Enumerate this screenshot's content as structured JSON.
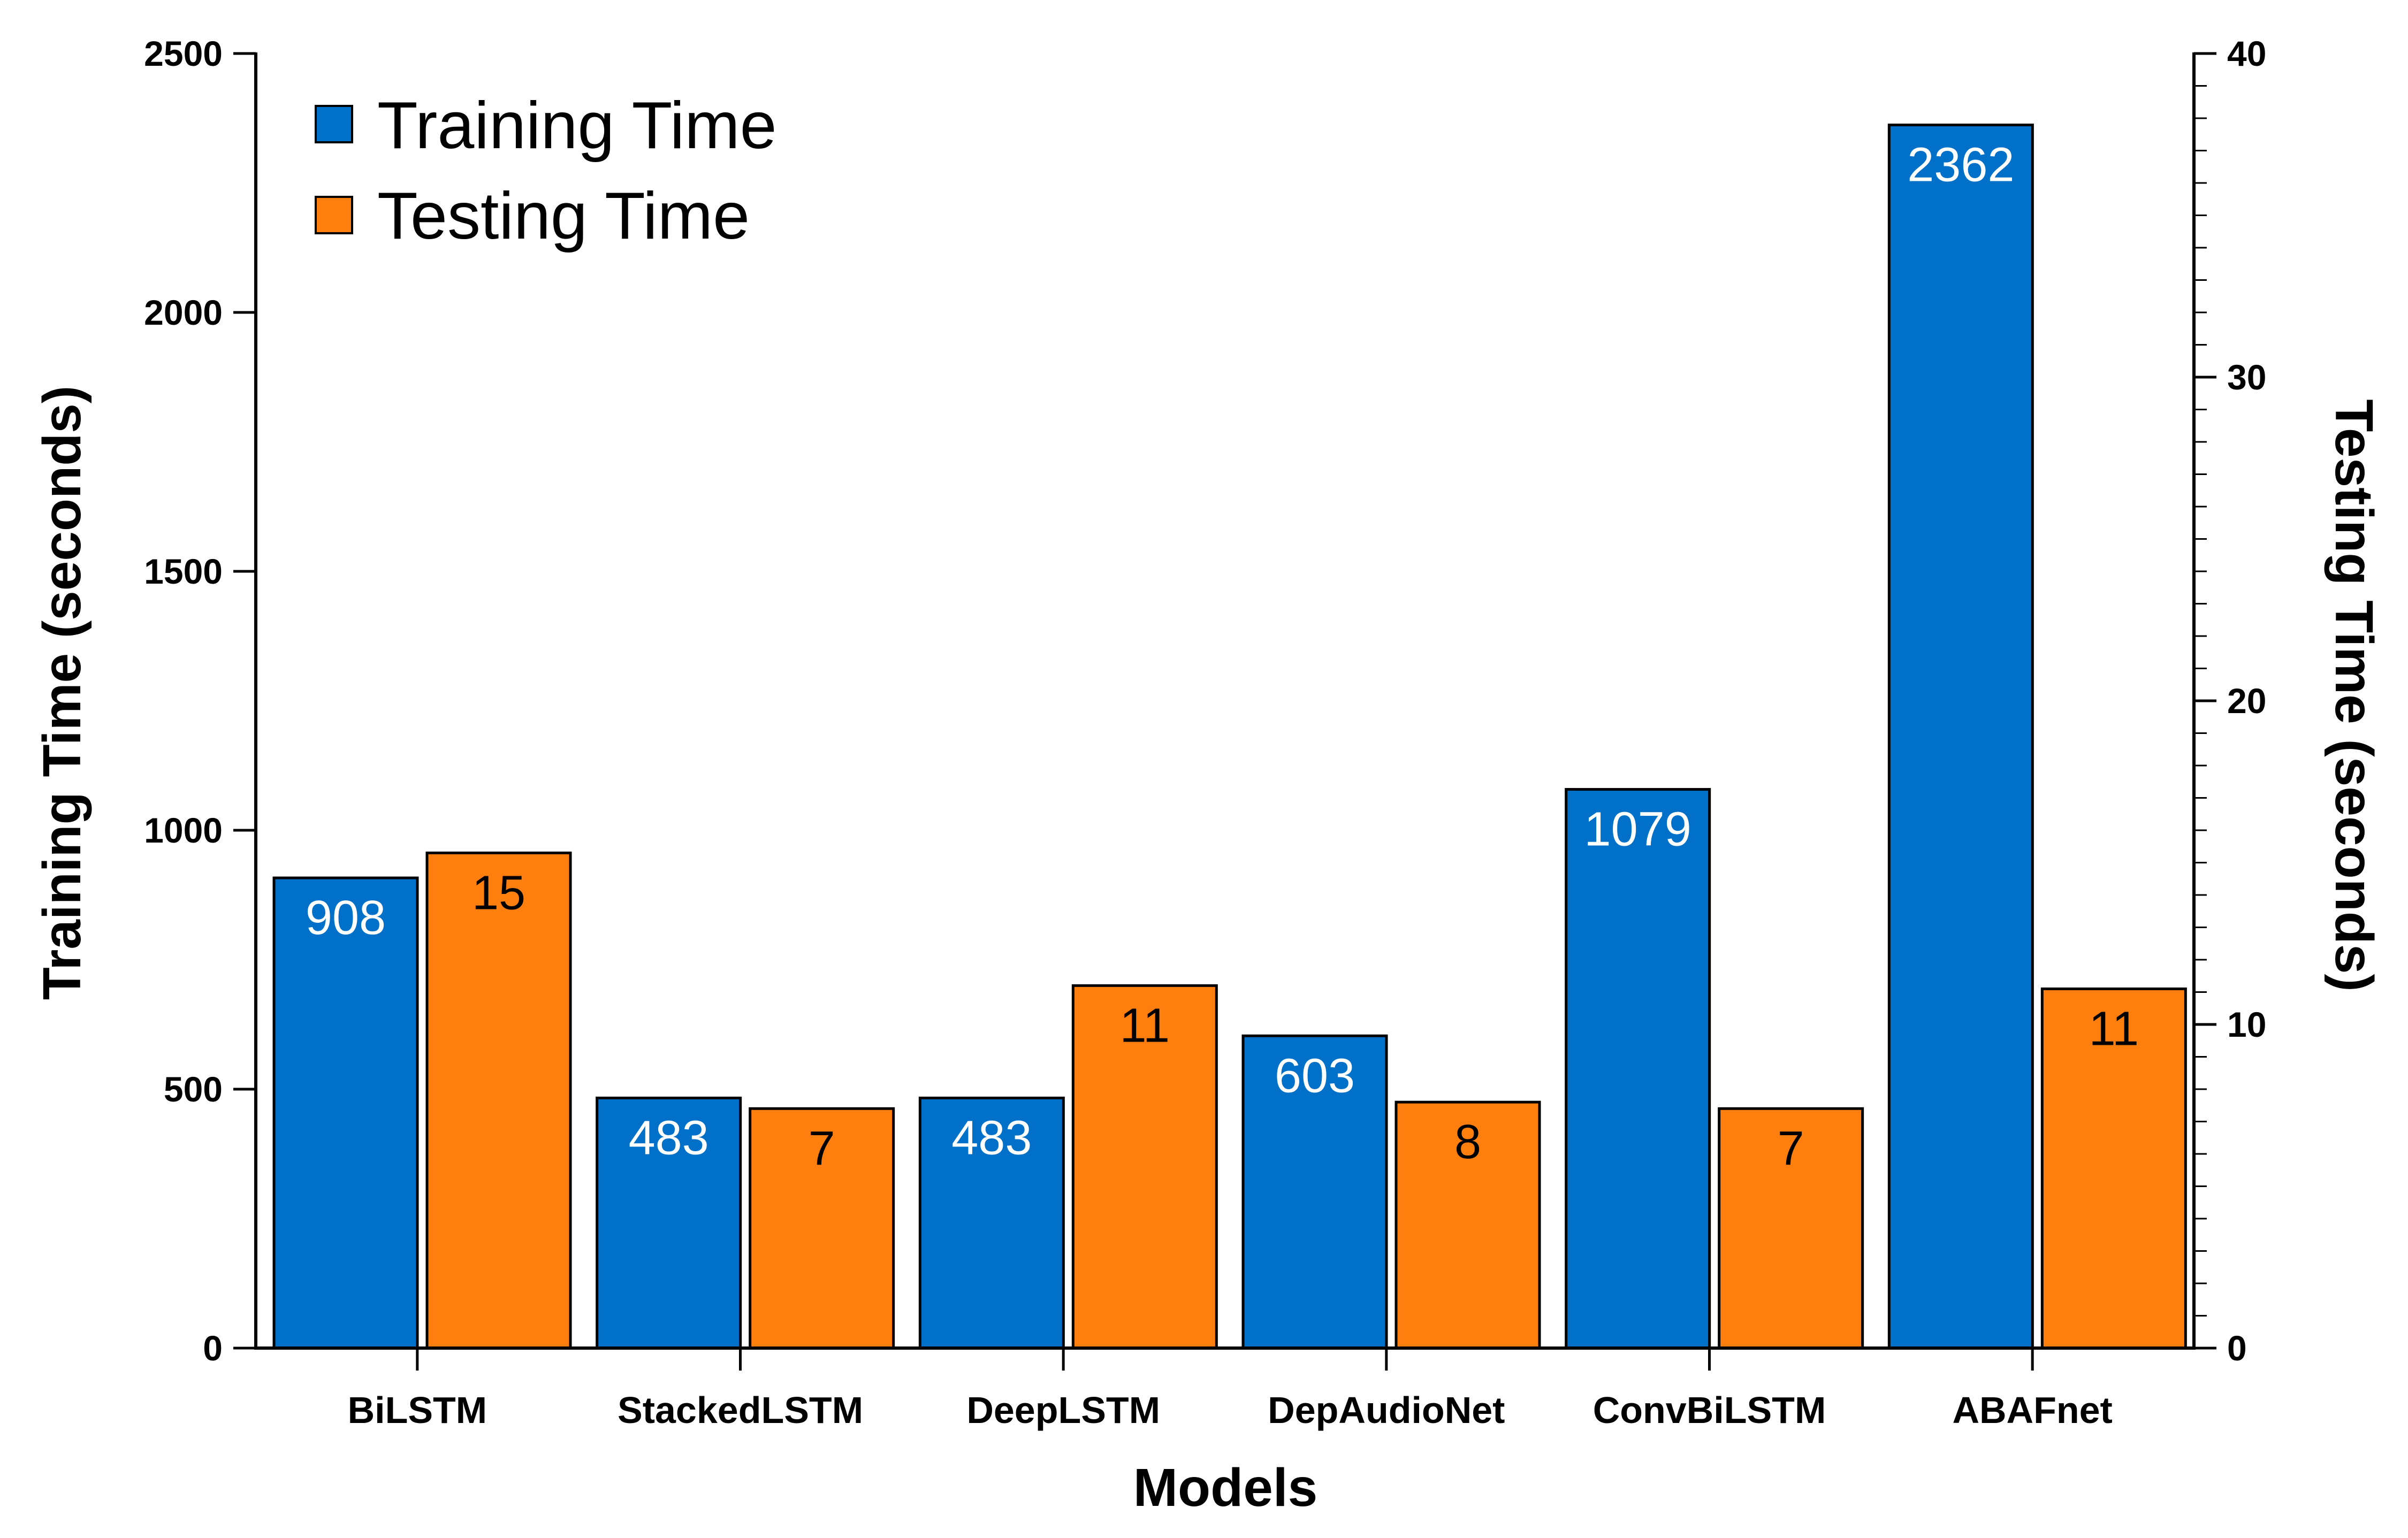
{
  "chart_data": {
    "type": "bar",
    "categories": [
      "BiLSTM",
      "StackedLSTM",
      "DeepLSTM",
      "DepAudioNet",
      "ConvBiLSTM",
      "ABAFnet"
    ],
    "series": [
      {
        "name": "Training Time",
        "axis": "left",
        "color": "#0070C8",
        "values": [
          908,
          483,
          483,
          603,
          1079,
          2362
        ],
        "labels": [
          "908",
          "483",
          "483",
          "603",
          "1079",
          "2362"
        ],
        "label_color": "#ffffff"
      },
      {
        "name": "Testing Time",
        "axis": "right",
        "color": "#FF7F0E",
        "values": [
          15.3,
          7.4,
          11.2,
          7.6,
          7.4,
          11.1
        ],
        "labels": [
          "15",
          "7",
          "11",
          "8",
          "7",
          "11"
        ],
        "label_color": "#000000"
      }
    ],
    "xlabel": "Models",
    "ylabel": "Training Time (seconds)",
    "y2label": "Testing Time (seconds)",
    "ylim": [
      0,
      2500
    ],
    "y2lim": [
      0,
      40
    ],
    "yticks": [
      "0",
      "500",
      "1000",
      "1500",
      "2000",
      "2500"
    ],
    "y2ticks": [
      "0",
      "10",
      "20",
      "30",
      "40"
    ],
    "grid": false,
    "legend_position": "top-left"
  }
}
